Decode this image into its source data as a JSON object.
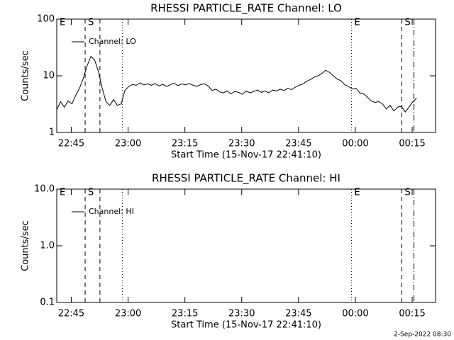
{
  "chart_data": [
    {
      "type": "line",
      "title": "RHESSI PARTICLE_RATE Channel: LO",
      "xlabel": "Start Time (15-Nov-17 22:41:10)",
      "ylabel": "Counts/sec",
      "xlim": [
        0,
        100
      ],
      "xticks": [
        {
          "value": 3.83,
          "label": "22:45"
        },
        {
          "value": 18.83,
          "label": "23:00"
        },
        {
          "value": 33.83,
          "label": "23:15"
        },
        {
          "value": 48.83,
          "label": "23:30"
        },
        {
          "value": 63.83,
          "label": "23:45"
        },
        {
          "value": 78.83,
          "label": "00:00"
        },
        {
          "value": 93.83,
          "label": "00:15"
        }
      ],
      "ylim": [
        1,
        100
      ],
      "yticks": [
        1,
        10,
        100
      ],
      "log_y": true,
      "legend": "upper left",
      "x": [
        0,
        1,
        2,
        3,
        4,
        5,
        6,
        7,
        8,
        9,
        10,
        11,
        12,
        13,
        14,
        15,
        16,
        17,
        18,
        19,
        20,
        21,
        22,
        23,
        24,
        25,
        26,
        27,
        28,
        29,
        30,
        31,
        32,
        33,
        34,
        35,
        36,
        37,
        38,
        39,
        40,
        41,
        42,
        43,
        44,
        45,
        46,
        47,
        48,
        49,
        50,
        51,
        52,
        53,
        54,
        55,
        56,
        57,
        58,
        59,
        60,
        61,
        62,
        63,
        64,
        65,
        66,
        67,
        68,
        69,
        70,
        71,
        72,
        73,
        74,
        75,
        76,
        77,
        78,
        79,
        80,
        81,
        82,
        83,
        84,
        85,
        86,
        87,
        88,
        89,
        90,
        91,
        92,
        93,
        94,
        95
      ],
      "series": [
        {
          "name": "Channel: LO",
          "color": "#000000",
          "values": [
            2.5,
            3.5,
            2.8,
            3.6,
            3.2,
            4.5,
            6,
            9,
            15,
            22,
            19,
            12,
            6,
            3.5,
            3,
            3.8,
            3,
            3.2,
            5.5,
            6.5,
            7,
            6.8,
            7.5,
            6.9,
            7.2,
            6.8,
            7.3,
            6.6,
            7.1,
            6.5,
            7,
            7.4,
            6.7,
            7.2,
            6.9,
            7.3,
            6.8,
            6.5,
            7,
            7.2,
            6.6,
            5.5,
            5.8,
            5.2,
            5,
            5.4,
            4.8,
            5.3,
            5.1,
            4.7,
            5.4,
            5,
            5.3,
            5.6,
            5.1,
            5.4,
            5,
            5.6,
            5.4,
            5.8,
            5.5,
            6,
            5.7,
            6.3,
            6.8,
            7.2,
            8,
            8.6,
            9.5,
            10,
            11,
            12.5,
            11.5,
            10,
            8.8,
            8.2,
            7,
            6.5,
            5.8,
            6,
            5,
            4.8,
            4.2,
            3.6,
            3.4,
            3.5,
            3.2,
            2.6,
            3,
            2.4,
            2.8,
            2.9,
            2.3,
            2.8,
            3.5,
            4
          ]
        }
      ],
      "vlines": [
        {
          "x": 0,
          "label": "E"
        },
        {
          "x": 7.5,
          "style": "dashed",
          "label": "S"
        },
        {
          "x": 11.4,
          "style": "dashed"
        },
        {
          "x": 17.3,
          "style": "dotted"
        },
        {
          "x": 77.8,
          "style": "dotted",
          "label": "E"
        },
        {
          "x": 91.1,
          "style": "dashed",
          "label": "S"
        },
        {
          "x": 94.3,
          "style": "dashdot"
        }
      ]
    },
    {
      "type": "line",
      "title": "RHESSI PARTICLE_RATE Channel: HI",
      "xlabel": "Start Time (15-Nov-17 22:41:10)",
      "ylabel": "Counts/sec",
      "xlim": [
        0,
        100
      ],
      "xticks": [
        {
          "value": 3.83,
          "label": "22:45"
        },
        {
          "value": 18.83,
          "label": "23:00"
        },
        {
          "value": 33.83,
          "label": "23:15"
        },
        {
          "value": 48.83,
          "label": "23:30"
        },
        {
          "value": 63.83,
          "label": "23:45"
        },
        {
          "value": 78.83,
          "label": "00:00"
        },
        {
          "value": 93.83,
          "label": "00:15"
        }
      ],
      "ylim": [
        0.1,
        10
      ],
      "yticks": [
        0.1,
        {
          "value": 1,
          "label": "1.0"
        },
        {
          "value": 10,
          "label": "10.0"
        }
      ],
      "log_y": true,
      "legend": "upper left",
      "x": [],
      "series": [
        {
          "name": "Channel: HI",
          "color": "#000000",
          "values": []
        }
      ],
      "vlines": [
        {
          "x": 0,
          "label": "E"
        },
        {
          "x": 7.5,
          "style": "dashed",
          "label": "S"
        },
        {
          "x": 11.4,
          "style": "dashed"
        },
        {
          "x": 17.3,
          "style": "dotted"
        },
        {
          "x": 77.8,
          "style": "dotted",
          "label": "E"
        },
        {
          "x": 91.1,
          "style": "dashed",
          "label": "S"
        },
        {
          "x": 94.3,
          "style": "dashdot"
        }
      ]
    }
  ],
  "footer": "2-Sep-2022 08:30"
}
